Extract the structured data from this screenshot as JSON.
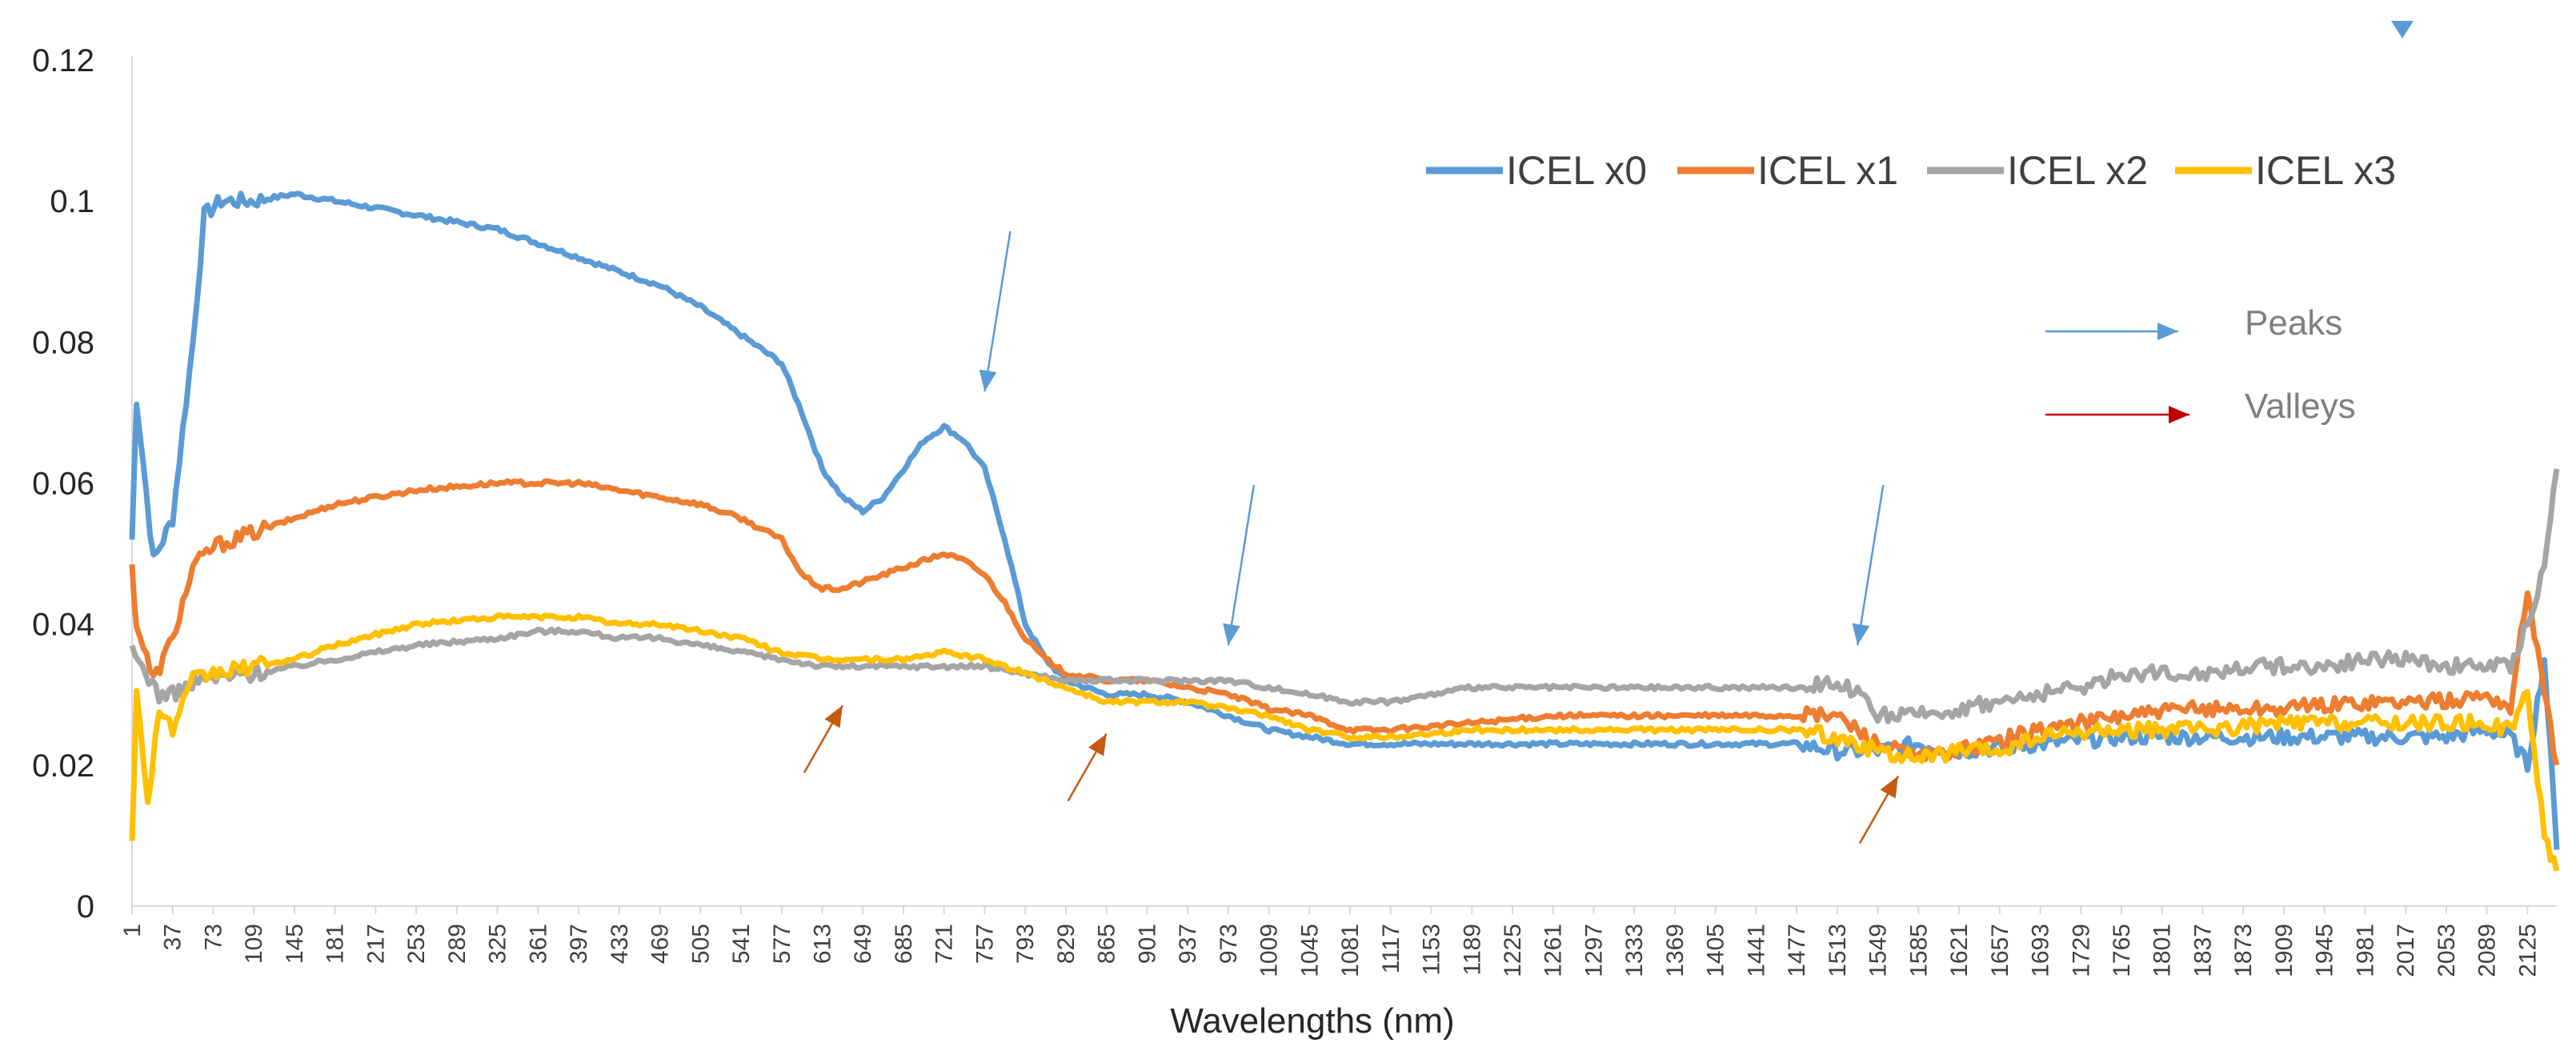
{
  "chart_data": {
    "type": "line",
    "title": "",
    "xlabel": "Wavelengths (nm)",
    "ylabel": "",
    "ylim": [
      0,
      0.12
    ],
    "xlim": [
      1,
      2151
    ],
    "yticks": [
      "0",
      "0.02",
      "0.04",
      "0.06",
      "0.08",
      "0.1",
      "0.12"
    ],
    "ytick_values": [
      0,
      0.02,
      0.04,
      0.06,
      0.08,
      0.1,
      0.12
    ],
    "xtick_start": 1,
    "xtick_step": 36,
    "xtick_end": 2125,
    "legend_position": "top-right",
    "series": [
      {
        "name": "ICEL x0",
        "color": "#5B9BD5",
        "x": [
          1,
          5,
          20,
          37,
          55,
          65,
          80,
          109,
          145,
          181,
          253,
          325,
          361,
          397,
          433,
          469,
          505,
          541,
          577,
          595,
          613,
          631,
          649,
          667,
          685,
          703,
          721,
          739,
          757,
          775,
          793,
          811,
          829,
          847,
          865,
          901,
          937,
          973,
          1009,
          1045,
          1081,
          1117,
          1189,
          1261,
          1333,
          1405,
          1477,
          1513,
          1549,
          1585,
          1621,
          1693,
          1765,
          1837,
          1909,
          1981,
          2053,
          2089,
          2110,
          2125,
          2140,
          2151
        ],
        "values": [
          0.052,
          0.072,
          0.049,
          0.055,
          0.08,
          0.098,
          0.1,
          0.1,
          0.101,
          0.1,
          0.098,
          0.096,
          0.094,
          0.092,
          0.09,
          0.088,
          0.085,
          0.081,
          0.077,
          0.07,
          0.062,
          0.058,
          0.056,
          0.058,
          0.062,
          0.066,
          0.068,
          0.066,
          0.062,
          0.052,
          0.04,
          0.035,
          0.032,
          0.031,
          0.03,
          0.03,
          0.029,
          0.027,
          0.025,
          0.024,
          0.023,
          0.023,
          0.023,
          0.023,
          0.023,
          0.023,
          0.023,
          0.022,
          0.022,
          0.023,
          0.022,
          0.023,
          0.024,
          0.024,
          0.024,
          0.024,
          0.024,
          0.025,
          0.024,
          0.02,
          0.035,
          0.008
        ]
      },
      {
        "name": "ICEL x1",
        "color": "#ED7D31",
        "x": [
          1,
          5,
          20,
          37,
          55,
          73,
          109,
          145,
          181,
          253,
          325,
          361,
          397,
          433,
          469,
          505,
          541,
          577,
          595,
          613,
          631,
          649,
          667,
          685,
          703,
          721,
          739,
          757,
          775,
          793,
          811,
          829,
          865,
          901,
          937,
          973,
          1009,
          1045,
          1081,
          1117,
          1189,
          1261,
          1333,
          1405,
          1477,
          1513,
          1549,
          1585,
          1621,
          1693,
          1765,
          1837,
          1909,
          1981,
          2053,
          2089,
          2110,
          2125,
          2140,
          2151
        ],
        "values": [
          0.048,
          0.04,
          0.032,
          0.038,
          0.048,
          0.051,
          0.053,
          0.055,
          0.057,
          0.059,
          0.06,
          0.06,
          0.06,
          0.059,
          0.058,
          0.057,
          0.055,
          0.052,
          0.047,
          0.045,
          0.045,
          0.046,
          0.047,
          0.048,
          0.049,
          0.05,
          0.049,
          0.047,
          0.043,
          0.038,
          0.035,
          0.033,
          0.032,
          0.032,
          0.031,
          0.03,
          0.028,
          0.027,
          0.025,
          0.025,
          0.026,
          0.027,
          0.027,
          0.027,
          0.027,
          0.027,
          0.023,
          0.021,
          0.022,
          0.025,
          0.027,
          0.028,
          0.028,
          0.029,
          0.029,
          0.03,
          0.028,
          0.045,
          0.03,
          0.02
        ]
      },
      {
        "name": "ICEL x2",
        "color": "#A5A5A5",
        "x": [
          1,
          10,
          25,
          37,
          60,
          109,
          145,
          181,
          253,
          325,
          361,
          397,
          433,
          469,
          505,
          541,
          577,
          613,
          649,
          685,
          721,
          757,
          793,
          829,
          865,
          901,
          937,
          973,
          1009,
          1045,
          1081,
          1117,
          1153,
          1189,
          1225,
          1261,
          1333,
          1405,
          1477,
          1513,
          1531,
          1549,
          1585,
          1621,
          1657,
          1693,
          1729,
          1765,
          1801,
          1837,
          1873,
          1909,
          1945,
          1981,
          2017,
          2053,
          2089,
          2110,
          2125,
          2140,
          2151
        ],
        "values": [
          0.036,
          0.034,
          0.03,
          0.03,
          0.032,
          0.033,
          0.034,
          0.035,
          0.037,
          0.038,
          0.039,
          0.039,
          0.038,
          0.038,
          0.037,
          0.036,
          0.035,
          0.034,
          0.034,
          0.034,
          0.034,
          0.034,
          0.033,
          0.032,
          0.032,
          0.032,
          0.032,
          0.032,
          0.031,
          0.03,
          0.029,
          0.029,
          0.03,
          0.031,
          0.031,
          0.031,
          0.031,
          0.031,
          0.031,
          0.032,
          0.03,
          0.027,
          0.027,
          0.028,
          0.029,
          0.03,
          0.031,
          0.033,
          0.033,
          0.033,
          0.034,
          0.034,
          0.034,
          0.035,
          0.035,
          0.034,
          0.034,
          0.034,
          0.04,
          0.048,
          0.062
        ]
      },
      {
        "name": "ICEL x3",
        "color": "#FFC000",
        "x": [
          1,
          5,
          15,
          25,
          37,
          55,
          73,
          109,
          145,
          181,
          253,
          325,
          361,
          397,
          433,
          469,
          505,
          541,
          577,
          613,
          649,
          685,
          721,
          757,
          793,
          829,
          865,
          901,
          937,
          973,
          1009,
          1045,
          1081,
          1117,
          1189,
          1261,
          1333,
          1405,
          1477,
          1513,
          1549,
          1585,
          1621,
          1657,
          1693,
          1765,
          1837,
          1909,
          1981,
          2053,
          2089,
          2110,
          2125,
          2140,
          2151
        ],
        "values": [
          0.01,
          0.03,
          0.015,
          0.028,
          0.025,
          0.032,
          0.033,
          0.034,
          0.035,
          0.037,
          0.04,
          0.041,
          0.041,
          0.041,
          0.04,
          0.04,
          0.039,
          0.038,
          0.036,
          0.035,
          0.035,
          0.035,
          0.036,
          0.035,
          0.033,
          0.031,
          0.029,
          0.029,
          0.029,
          0.028,
          0.027,
          0.025,
          0.024,
          0.024,
          0.025,
          0.025,
          0.025,
          0.025,
          0.025,
          0.024,
          0.022,
          0.021,
          0.022,
          0.022,
          0.024,
          0.025,
          0.025,
          0.026,
          0.026,
          0.026,
          0.026,
          0.025,
          0.03,
          0.01,
          0.005
        ]
      }
    ],
    "legend_entries": [
      "ICEL x0",
      "ICEL x1",
      "ICEL x2",
      "ICEL x3"
    ],
    "annotations": {
      "peaks_label": "Peaks",
      "valleys_label": "Valleys",
      "peaks_color": "#5B9BD5",
      "valleys_color": "#C00000",
      "valley_marker_color": "#C55A11",
      "peak_markers_at": [
        {
          "x": 757,
          "y": 0.073
        },
        {
          "x": 973,
          "y": 0.037
        },
        {
          "x": 1531,
          "y": 0.037
        }
      ],
      "valley_markers_at": [
        {
          "x": 631,
          "y": 0.028
        },
        {
          "x": 865,
          "y": 0.024
        },
        {
          "x": 1567,
          "y": 0.018
        }
      ]
    }
  }
}
